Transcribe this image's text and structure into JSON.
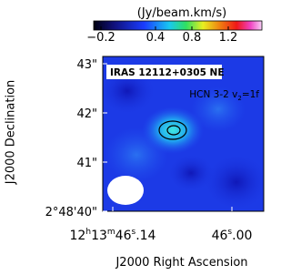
{
  "colorbar": {
    "label": "(Jy/beam.km/s)",
    "ticks": [
      "−0.2",
      "0.4",
      "0.8",
      "1.2"
    ]
  },
  "panel": {
    "source": "IRAS 12112+0305 NE",
    "line": [
      "HCN 3-2 v",
      "2",
      "=1f"
    ]
  },
  "y_axis": {
    "label": "J2000 Declination",
    "ticks": [
      "43\"",
      "42\"",
      "41\"",
      "2°48'40\""
    ]
  },
  "x_axis": {
    "label": "J2000 Right Ascension",
    "ticks": [
      [
        "12",
        "h",
        "13",
        "m",
        "46",
        "s",
        ".14"
      ],
      [
        "46",
        "s",
        ".00"
      ]
    ]
  }
}
